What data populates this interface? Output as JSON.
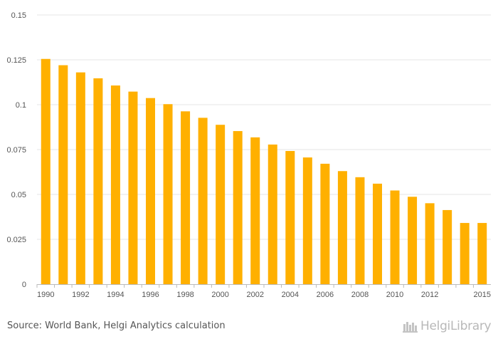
{
  "chart_data": {
    "type": "bar",
    "title": "",
    "xlabel": "",
    "ylabel": "",
    "categories": [
      "1990",
      "1991",
      "1992",
      "1993",
      "1994",
      "1995",
      "1996",
      "1997",
      "1998",
      "1999",
      "2000",
      "2001",
      "2002",
      "2003",
      "2004",
      "2005",
      "2006",
      "2007",
      "2008",
      "2009",
      "2010",
      "2011",
      "2012",
      "2013",
      "2014",
      "2015"
    ],
    "x_tick_labels": [
      "1990",
      "1992",
      "1994",
      "1996",
      "1998",
      "2000",
      "2002",
      "2004",
      "2006",
      "2008",
      "2010",
      "2012",
      "2015"
    ],
    "values": [
      0.1255,
      0.122,
      0.118,
      0.1147,
      0.1107,
      0.1073,
      0.1037,
      0.1003,
      0.0963,
      0.0927,
      0.0888,
      0.0853,
      0.0818,
      0.0778,
      0.0742,
      0.0706,
      0.0671,
      0.063,
      0.0596,
      0.056,
      0.0522,
      0.0487,
      0.0451,
      0.0413,
      0.0341,
      0.0341
    ],
    "ylim": [
      0,
      0.15
    ],
    "y_ticks": [
      "0",
      "0.025",
      "0.05",
      "0.075",
      "0.1",
      "0.125",
      "0.15"
    ],
    "grid": true,
    "bar_color": "#FFB000",
    "grid_color": "#e6e6e6"
  },
  "footer": {
    "source": "Source: World Bank, Helgi Analytics calculation",
    "logo_text": "HelgiLibrary"
  }
}
